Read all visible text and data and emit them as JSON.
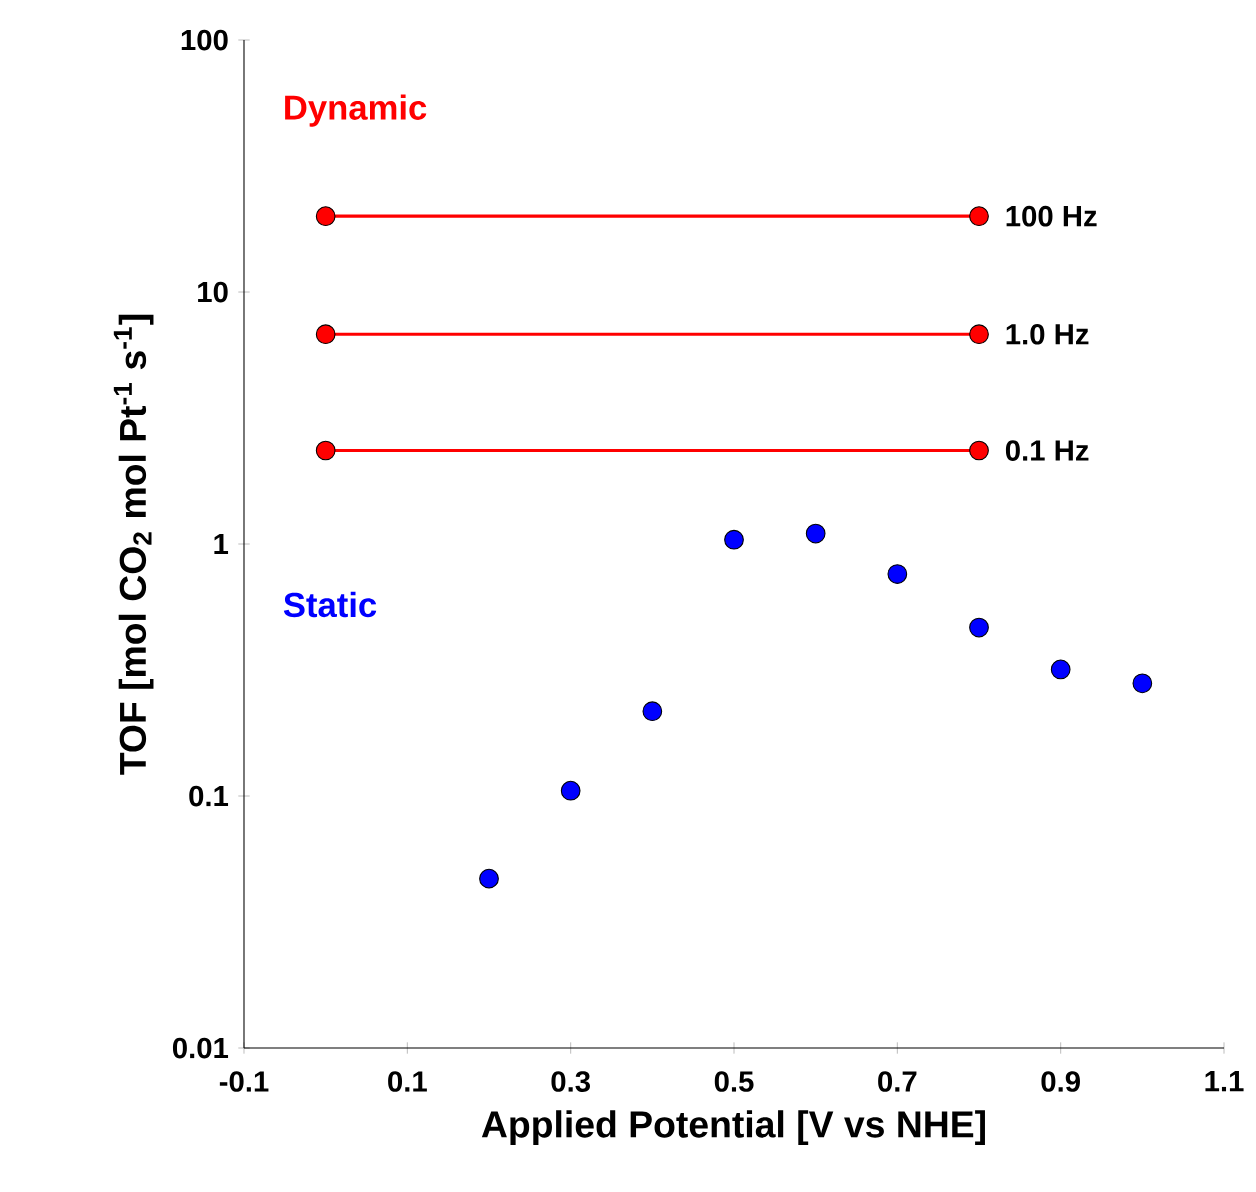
{
  "chart_data": {
    "type": "scatter",
    "xlabel": "Applied Potential [V vs NHE]",
    "ylabel": "TOF [mol CO$_{2}$ mol Pt$^{-1}$ s$^{-1}$]",
    "log": "y",
    "xlim": [
      -0.1,
      1.1
    ],
    "xticks": [
      -0.1,
      0.1,
      0.3,
      0.5,
      0.7,
      0.9,
      1.1
    ],
    "ylim": [
      0.01,
      100
    ],
    "yticks": [
      0.01,
      0.1,
      1,
      10,
      100
    ],
    "marker": "circle",
    "annotations": [
      "Dynamic"
    ],
    "series": [
      {
        "name": "100 Hz",
        "type": "line",
        "color": "#ff0000",
        "x": [
          0,
          0.8
        ],
        "values": [
          20,
          20
        ]
      },
      {
        "name": "1.0 Hz",
        "type": "line",
        "color": "#ff0000",
        "x": [
          0,
          0.8
        ],
        "values": [
          6.8,
          6.8
        ]
      },
      {
        "name": "0.1 Hz",
        "type": "line",
        "color": "#ff0000",
        "x": [
          0,
          0.8
        ],
        "values": [
          2.35,
          2.35
        ]
      },
      {
        "name": "Static",
        "color": "#0000ff",
        "x": [
          0.2,
          0.3,
          0.4,
          0.5,
          0.6,
          0.7,
          0.8,
          0.9,
          1.0
        ],
        "values": [
          0.047,
          0.105,
          0.217,
          1.04,
          1.1,
          0.76,
          0.466,
          0.318,
          0.28
        ]
      }
    ]
  }
}
